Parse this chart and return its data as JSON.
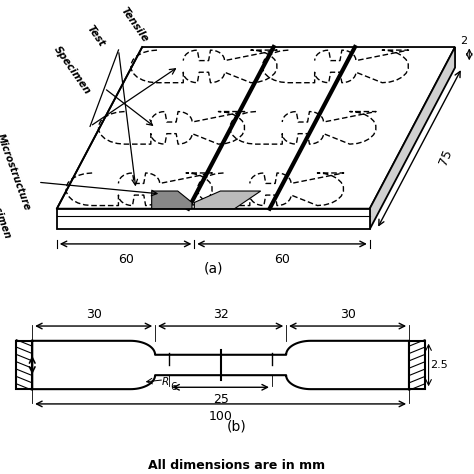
{
  "bg_color": "#ffffff",
  "line_color": "#000000",
  "label_a": "(a)",
  "label_b": "(b)",
  "subtitle": "All dimensions are in mm",
  "dim_60_left": "60",
  "dim_60_right": "60",
  "dim_75": "75",
  "dim_2": "2",
  "dim_30_left": "30",
  "dim_32": "32",
  "dim_30_right": "30",
  "dim_25": "25",
  "dim_100": "100",
  "dim_2p5": "2.5",
  "label_tensile": "Tensile\nTest\nSpecimen",
  "label_micro": "Microstructure\nTest Specimen"
}
